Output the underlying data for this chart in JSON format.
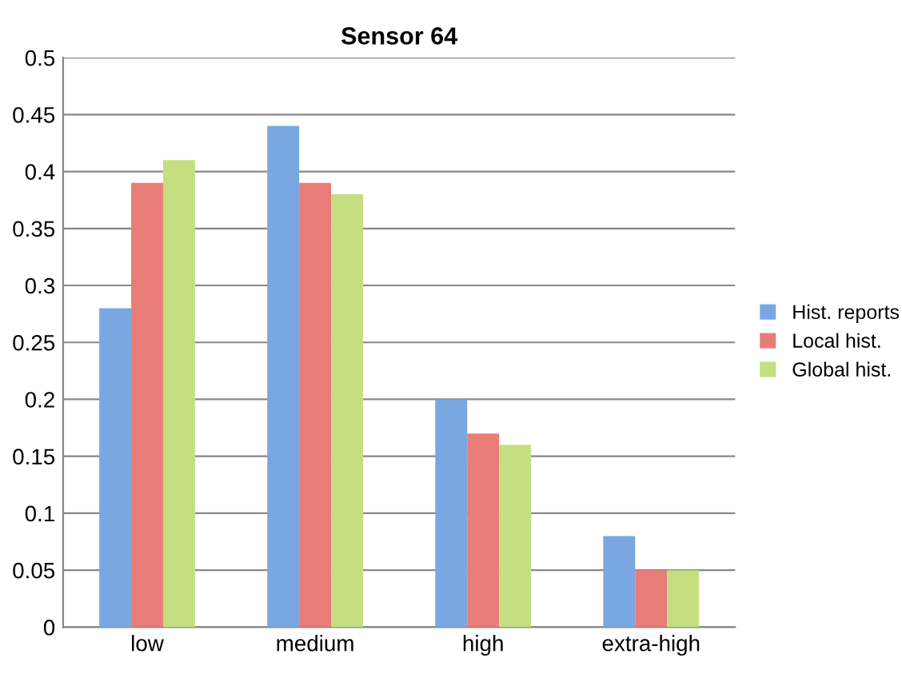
{
  "chart_data": {
    "type": "bar",
    "title": "Sensor 64",
    "categories": [
      "low",
      "medium",
      "high",
      "extra-high"
    ],
    "series": [
      {
        "name": "Hist. reports",
        "color": "#7aa7e2",
        "values": [
          0.28,
          0.44,
          0.2,
          0.08
        ]
      },
      {
        "name": "Local hist.",
        "color": "#ea7c78",
        "values": [
          0.39,
          0.39,
          0.17,
          0.05
        ]
      },
      {
        "name": "Global hist.",
        "color": "#c4de80",
        "values": [
          0.41,
          0.38,
          0.16,
          0.05
        ]
      }
    ],
    "ylim": [
      0,
      0.5
    ],
    "yticks": [
      0,
      0.05,
      0.1,
      0.15,
      0.2,
      0.25,
      0.3,
      0.35,
      0.4,
      0.45,
      0.5
    ],
    "grid": "y",
    "legend": "right"
  }
}
